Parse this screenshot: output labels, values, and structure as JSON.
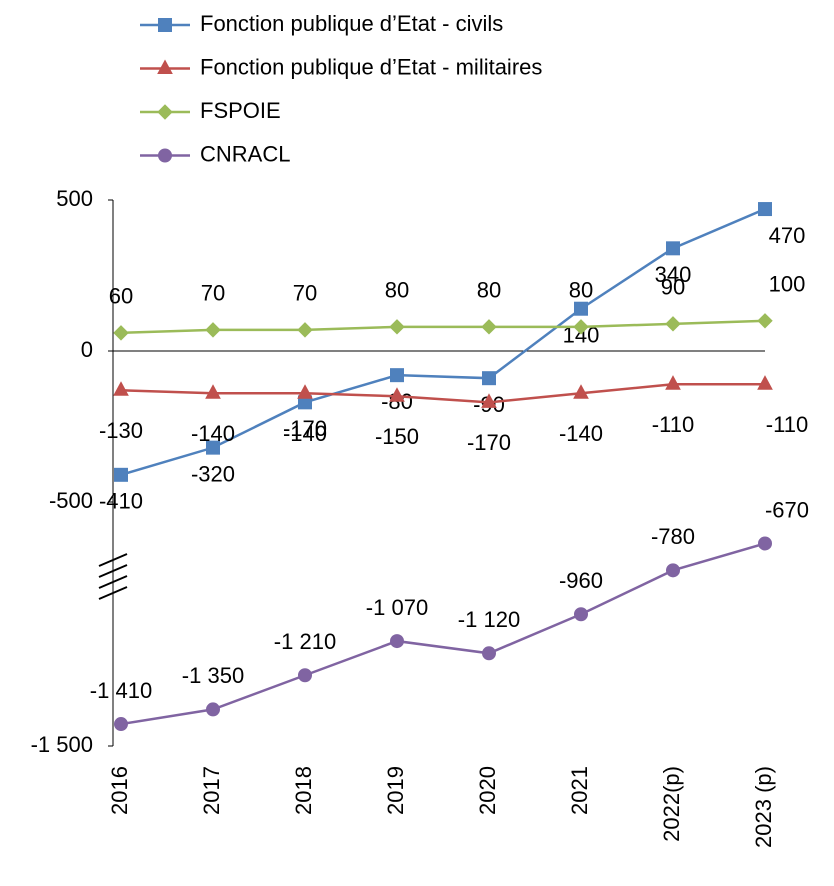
{
  "chart_data": {
    "type": "line",
    "categories": [
      "2016",
      "2017",
      "2018",
      "2019",
      "2020",
      "2021",
      "2022(p)",
      "2023 (p)"
    ],
    "series": [
      {
        "name": "Fonction publique d’Etat - civils",
        "color": "#4f81bd",
        "marker": "square",
        "values": [
          -410,
          -320,
          -170,
          -80,
          -90,
          140,
          340,
          470
        ]
      },
      {
        "name": "Fonction publique d’Etat - militaires",
        "color": "#c0504d",
        "marker": "triangle",
        "values": [
          -130,
          -140,
          -140,
          -150,
          -170,
          -140,
          -110,
          -110
        ]
      },
      {
        "name": "FSPOIE",
        "color": "#9bbb59",
        "marker": "diamond",
        "values": [
          60,
          70,
          70,
          80,
          80,
          80,
          90,
          100
        ]
      },
      {
        "name": "CNRACL",
        "color": "#8064a2",
        "marker": "circle",
        "values": [
          -1410,
          -1350,
          -1210,
          -1070,
          -1120,
          -960,
          -780,
          -670
        ],
        "value_labels": [
          "-1 410",
          "-1 350",
          "-1 210",
          "-1 070",
          "-1 120",
          "-960",
          "-780",
          "-670"
        ]
      }
    ],
    "ylim": [
      -1500,
      500
    ],
    "yticks": [
      {
        "value": -1500,
        "label": "-1 500"
      },
      -500,
      0,
      500
    ],
    "axis_break": true,
    "legend": "top"
  }
}
